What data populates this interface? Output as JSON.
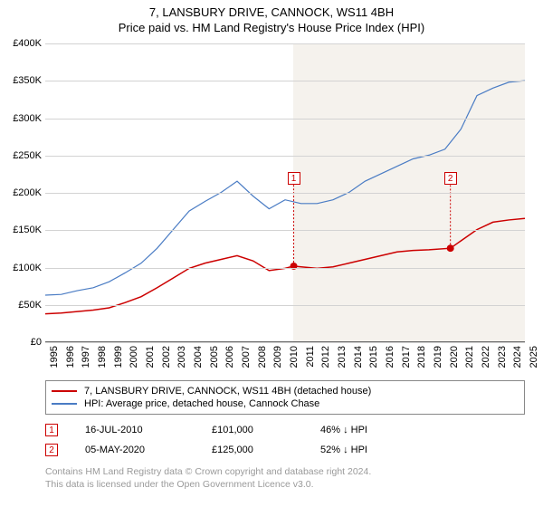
{
  "title": "7, LANSBURY DRIVE, CANNOCK, WS11 4BH",
  "subtitle": "Price paid vs. HM Land Registry's House Price Index (HPI)",
  "chart": {
    "type": "line",
    "background_left": "#ffffff",
    "background_right": "#f5f2ed",
    "grid_color": "#d3d3d3",
    "axis_color": "#666666",
    "text_color": "#000000",
    "y_axis": {
      "min": 0,
      "max": 400000,
      "tick_step": 50000,
      "tick_labels": [
        "£0",
        "£50K",
        "£100K",
        "£150K",
        "£200K",
        "£250K",
        "£300K",
        "£350K",
        "£400K"
      ],
      "label_fontsize": 11
    },
    "x_axis": {
      "min": 1995,
      "max": 2025,
      "ticks": [
        1995,
        1996,
        1997,
        1998,
        1999,
        2000,
        2001,
        2002,
        2003,
        2004,
        2005,
        2006,
        2007,
        2008,
        2009,
        2010,
        2011,
        2012,
        2013,
        2014,
        2015,
        2016,
        2017,
        2018,
        2019,
        2020,
        2021,
        2022,
        2023,
        2024,
        2025
      ],
      "label_fontsize": 11,
      "rotation": -90
    },
    "shaded_from_year": 2010.5,
    "series": [
      {
        "name": "property",
        "label": "7, LANSBURY DRIVE, CANNOCK, WS11 4BH (detached house)",
        "color": "#cc0000",
        "line_width": 1.5,
        "data": [
          [
            1995,
            37000
          ],
          [
            1996,
            38000
          ],
          [
            1997,
            40000
          ],
          [
            1998,
            42000
          ],
          [
            1999,
            45000
          ],
          [
            2000,
            52000
          ],
          [
            2001,
            60000
          ],
          [
            2002,
            72000
          ],
          [
            2003,
            85000
          ],
          [
            2004,
            98000
          ],
          [
            2005,
            105000
          ],
          [
            2006,
            110000
          ],
          [
            2007,
            115000
          ],
          [
            2008,
            108000
          ],
          [
            2009,
            95000
          ],
          [
            2010,
            98000
          ],
          [
            2010.54,
            101000
          ],
          [
            2011,
            100000
          ],
          [
            2012,
            98000
          ],
          [
            2013,
            100000
          ],
          [
            2014,
            105000
          ],
          [
            2015,
            110000
          ],
          [
            2016,
            115000
          ],
          [
            2017,
            120000
          ],
          [
            2018,
            122000
          ],
          [
            2019,
            123000
          ],
          [
            2020.34,
            125000
          ],
          [
            2021,
            135000
          ],
          [
            2022,
            150000
          ],
          [
            2023,
            160000
          ],
          [
            2024,
            163000
          ],
          [
            2025,
            165000
          ]
        ]
      },
      {
        "name": "hpi",
        "label": "HPI: Average price, detached house, Cannock Chase",
        "color": "#4a7cc4",
        "line_width": 1.2,
        "data": [
          [
            1995,
            62000
          ],
          [
            1996,
            63000
          ],
          [
            1997,
            68000
          ],
          [
            1998,
            72000
          ],
          [
            1999,
            80000
          ],
          [
            2000,
            92000
          ],
          [
            2001,
            105000
          ],
          [
            2002,
            125000
          ],
          [
            2003,
            150000
          ],
          [
            2004,
            175000
          ],
          [
            2005,
            188000
          ],
          [
            2006,
            200000
          ],
          [
            2007,
            215000
          ],
          [
            2008,
            195000
          ],
          [
            2009,
            178000
          ],
          [
            2010,
            190000
          ],
          [
            2011,
            185000
          ],
          [
            2012,
            185000
          ],
          [
            2013,
            190000
          ],
          [
            2014,
            200000
          ],
          [
            2015,
            215000
          ],
          [
            2016,
            225000
          ],
          [
            2017,
            235000
          ],
          [
            2018,
            245000
          ],
          [
            2019,
            250000
          ],
          [
            2020,
            258000
          ],
          [
            2021,
            285000
          ],
          [
            2022,
            330000
          ],
          [
            2023,
            340000
          ],
          [
            2024,
            348000
          ],
          [
            2025,
            350000
          ]
        ]
      }
    ],
    "sale_markers": [
      {
        "id": "1",
        "year": 2010.54,
        "price": 101000,
        "color": "#cc0000",
        "label_y_offset": -105
      },
      {
        "id": "2",
        "year": 2020.34,
        "price": 125000,
        "color": "#cc0000",
        "label_y_offset": -85
      }
    ]
  },
  "legend": {
    "border_color": "#888888",
    "fontsize": 11
  },
  "sales_table": {
    "rows": [
      {
        "marker": "1",
        "marker_color": "#cc0000",
        "date": "16-JUL-2010",
        "price": "£101,000",
        "delta": "46% ↓ HPI"
      },
      {
        "marker": "2",
        "marker_color": "#cc0000",
        "date": "05-MAY-2020",
        "price": "£125,000",
        "delta": "52% ↓ HPI"
      }
    ]
  },
  "footer": {
    "line1": "Contains HM Land Registry data © Crown copyright and database right 2024.",
    "line2": "This data is licensed under the Open Government Licence v3.0.",
    "color": "#9a9a9a",
    "fontsize": 10.5
  }
}
